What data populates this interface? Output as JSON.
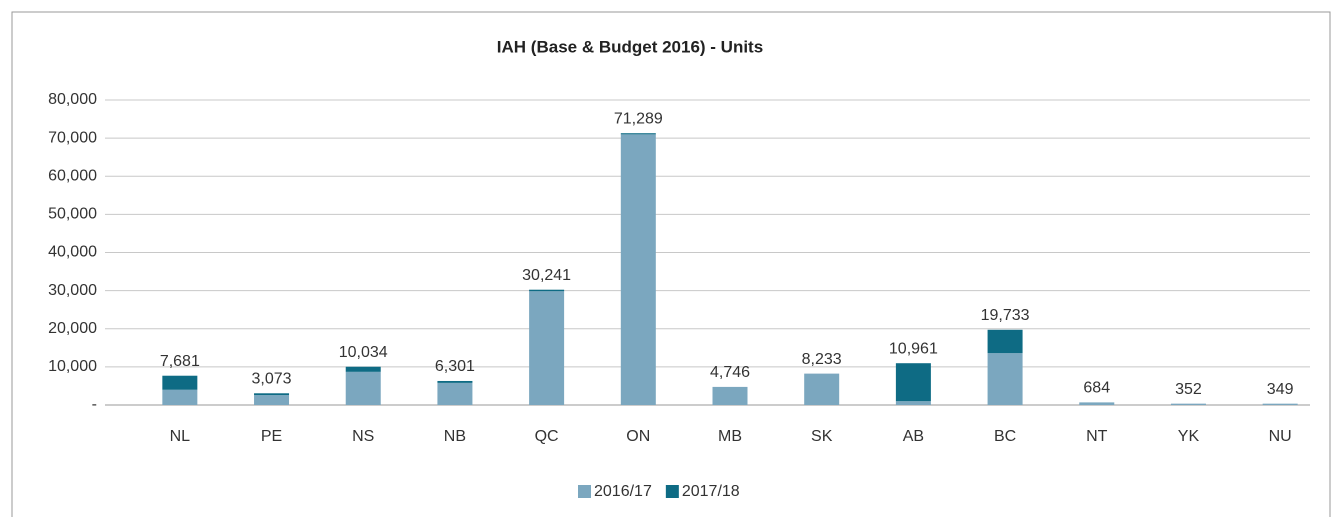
{
  "chart_data": {
    "type": "stacked_bar",
    "title": "IAH (Base & Budget 2016) - Units",
    "categories": [
      "NL",
      "PE",
      "NS",
      "NB",
      "QC",
      "ON",
      "MB",
      "SK",
      "AB",
      "BC",
      "NT",
      "YK",
      "NU"
    ],
    "series": [
      {
        "name": "2016/17",
        "color": "#7ba7bf",
        "values": [
          4000,
          2600,
          8700,
          5800,
          29841,
          70989,
          4746,
          8233,
          1000,
          13600,
          684,
          352,
          349
        ]
      },
      {
        "name": "2017/18",
        "color": "#0e6b84",
        "values": [
          3681,
          473,
          1334,
          501,
          400,
          300,
          0,
          0,
          9961,
          6133,
          0,
          0,
          0
        ]
      }
    ],
    "totals": [
      7681,
      3073,
      10034,
      6301,
      30241,
      71289,
      4746,
      8233,
      10961,
      19733,
      684,
      352,
      349
    ],
    "value_labels": [
      "7,681",
      "3,073",
      "10,034",
      "6,301",
      "30,241",
      "71,289",
      "4,746",
      "8,233",
      "10,961",
      "19,733",
      "684",
      "352",
      "349"
    ],
    "ylim": [
      0,
      80000
    ],
    "yticks": [
      {
        "value": 0,
        "label": "-"
      },
      {
        "value": 10000,
        "label": "10,000"
      },
      {
        "value": 20000,
        "label": "20,000"
      },
      {
        "value": 30000,
        "label": "30,000"
      },
      {
        "value": 40000,
        "label": "40,000"
      },
      {
        "value": 50000,
        "label": "50,000"
      },
      {
        "value": 60000,
        "label": "60,000"
      },
      {
        "value": 70000,
        "label": "70,000"
      },
      {
        "value": 80000,
        "label": "80,000"
      }
    ],
    "grid": true,
    "legend": "bottom"
  }
}
